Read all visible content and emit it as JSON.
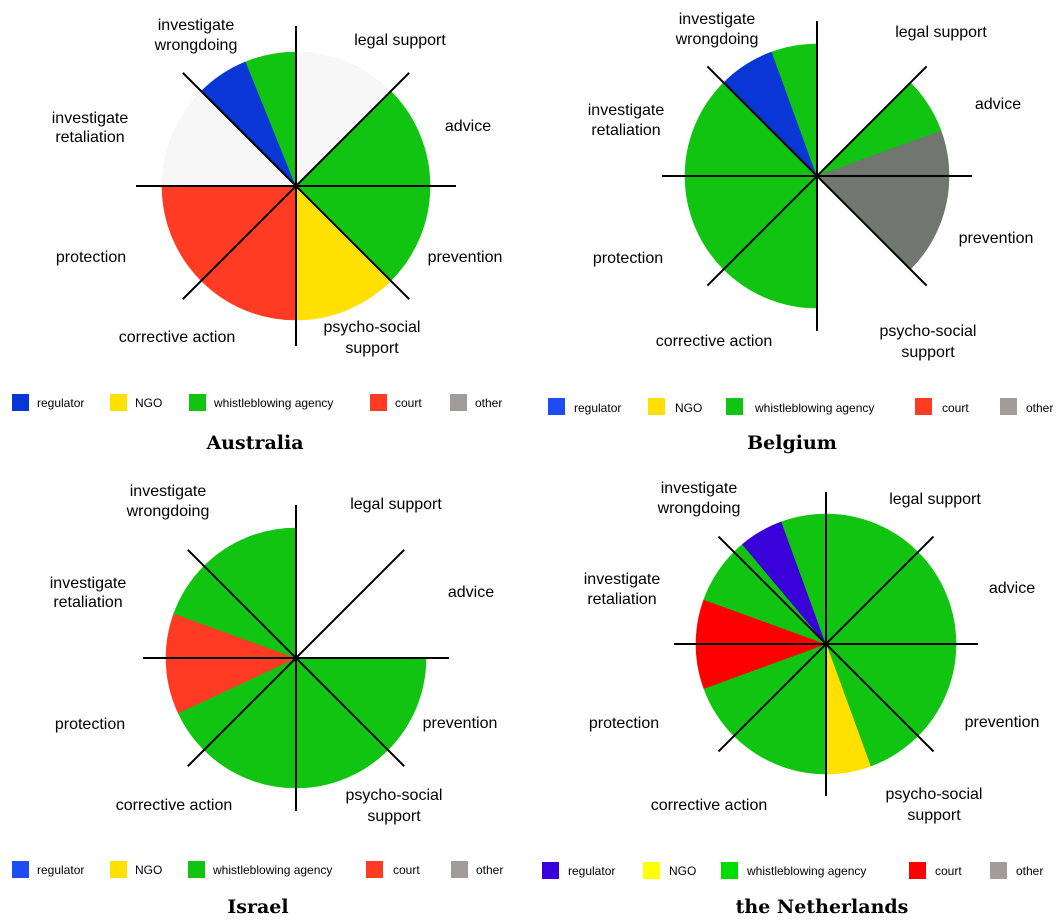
{
  "colors": {
    "regulator": "#0a36d6",
    "regulator_nl": "#3a00d9",
    "ngo": "#ffe000",
    "whistleblowing_agency": "#12c412",
    "court": "#ff3b24",
    "court_nl": "#ff0000",
    "other": "#6f776f",
    "none": "#ffffff",
    "none_light": "#f7f7f7",
    "line": "#000000"
  },
  "legend": {
    "regulator": "regulator",
    "ngo": "NGO",
    "whistleblowing_agency": "whistleblowing agency",
    "court": "court",
    "other": "other"
  },
  "chart_data": [
    {
      "type": "pie",
      "title": "Australia",
      "sector_labels": [
        "legal support",
        "advice",
        "prevention",
        "psycho-social support",
        "corrective action",
        "protection",
        "investigate retaliation",
        "investigate wrongdoing"
      ],
      "slices": [
        {
          "sector": "legal support",
          "provider": "none_light",
          "from": 0,
          "to": 45
        },
        {
          "sector": "advice",
          "provider": "whistleblowing_agency",
          "from": 45,
          "to": 90
        },
        {
          "sector": "prevention",
          "provider": "whistleblowing_agency",
          "from": 90,
          "to": 135
        },
        {
          "sector": "psycho-social support",
          "provider": "ngo",
          "from": 135,
          "to": 180
        },
        {
          "sector": "corrective action",
          "provider": "court",
          "from": 180,
          "to": 225
        },
        {
          "sector": "protection",
          "provider": "court",
          "from": 225,
          "to": 270
        },
        {
          "sector": "investigate retaliation",
          "provider": "none_light",
          "from": 270,
          "to": 315
        },
        {
          "sector": "investigate wrongdoing",
          "provider": "regulator",
          "from": 315,
          "to": 338
        },
        {
          "sector": "investigate wrongdoing",
          "provider": "whistleblowing_agency",
          "from": 338,
          "to": 360
        }
      ]
    },
    {
      "type": "pie",
      "title": "Belgium",
      "sector_labels": [
        "legal support",
        "advice",
        "prevention",
        "psycho-social support",
        "corrective action",
        "protection",
        "investigate retaliation",
        "investigate wrongdoing"
      ],
      "slices": [
        {
          "sector": "legal support",
          "provider": "none",
          "from": 0,
          "to": 45
        },
        {
          "sector": "advice",
          "provider": "whistleblowing_agency",
          "from": 45,
          "to": 70
        },
        {
          "sector": "advice",
          "provider": "other",
          "from": 70,
          "to": 90
        },
        {
          "sector": "prevention",
          "provider": "other",
          "from": 90,
          "to": 135
        },
        {
          "sector": "psycho-social support",
          "provider": "none",
          "from": 135,
          "to": 180
        },
        {
          "sector": "corrective action",
          "provider": "whistleblowing_agency",
          "from": 180,
          "to": 225
        },
        {
          "sector": "protection",
          "provider": "whistleblowing_agency",
          "from": 225,
          "to": 270
        },
        {
          "sector": "investigate retaliation",
          "provider": "whistleblowing_agency",
          "from": 270,
          "to": 315
        },
        {
          "sector": "investigate wrongdoing",
          "provider": "regulator",
          "from": 315,
          "to": 340
        },
        {
          "sector": "investigate wrongdoing",
          "provider": "whistleblowing_agency",
          "from": 340,
          "to": 360
        }
      ]
    },
    {
      "type": "pie",
      "title": "Israel",
      "sector_labels": [
        "legal support",
        "advice",
        "prevention",
        "psycho-social support",
        "corrective action",
        "protection",
        "investigate retaliation",
        "investigate wrongdoing"
      ],
      "slices": [
        {
          "sector": "legal support",
          "provider": "none",
          "from": 0,
          "to": 45
        },
        {
          "sector": "advice",
          "provider": "none",
          "from": 45,
          "to": 90
        },
        {
          "sector": "prevention",
          "provider": "whistleblowing_agency",
          "from": 90,
          "to": 135
        },
        {
          "sector": "psycho-social support",
          "provider": "whistleblowing_agency",
          "from": 135,
          "to": 180
        },
        {
          "sector": "corrective action",
          "provider": "whistleblowing_agency",
          "from": 180,
          "to": 225
        },
        {
          "sector": "protection",
          "provider": "whistleblowing_agency",
          "from": 225,
          "to": 245
        },
        {
          "sector": "protection",
          "provider": "court",
          "from": 245,
          "to": 270
        },
        {
          "sector": "investigate retaliation",
          "provider": "court",
          "from": 270,
          "to": 290
        },
        {
          "sector": "investigate retaliation",
          "provider": "whistleblowing_agency",
          "from": 290,
          "to": 315
        },
        {
          "sector": "investigate wrongdoing",
          "provider": "whistleblowing_agency",
          "from": 315,
          "to": 360
        }
      ]
    },
    {
      "type": "pie",
      "title": "the Netherlands",
      "sector_labels": [
        "legal support",
        "advice",
        "prevention",
        "psycho-social support",
        "corrective action",
        "protection",
        "investigate retaliation",
        "investigate wrongdoing"
      ],
      "slices": [
        {
          "sector": "legal support",
          "provider": "whistleblowing_agency",
          "from": 0,
          "to": 45
        },
        {
          "sector": "advice",
          "provider": "whistleblowing_agency",
          "from": 45,
          "to": 90
        },
        {
          "sector": "prevention",
          "provider": "whistleblowing_agency",
          "from": 90,
          "to": 135
        },
        {
          "sector": "psycho-social support",
          "provider": "whistleblowing_agency",
          "from": 135,
          "to": 160
        },
        {
          "sector": "psycho-social support",
          "provider": "ngo",
          "from": 160,
          "to": 180
        },
        {
          "sector": "corrective action",
          "provider": "whistleblowing_agency",
          "from": 180,
          "to": 225
        },
        {
          "sector": "protection",
          "provider": "whistleblowing_agency",
          "from": 225,
          "to": 250
        },
        {
          "sector": "protection",
          "provider": "court_nl",
          "from": 250,
          "to": 270
        },
        {
          "sector": "investigate retaliation",
          "provider": "court_nl",
          "from": 270,
          "to": 290
        },
        {
          "sector": "investigate retaliation",
          "provider": "whistleblowing_agency",
          "from": 290,
          "to": 315
        },
        {
          "sector": "investigate wrongdoing",
          "provider": "whistleblowing_agency",
          "from": 315,
          "to": 320
        },
        {
          "sector": "investigate wrongdoing",
          "provider": "regulator_nl",
          "from": 320,
          "to": 340
        },
        {
          "sector": "investigate wrongdoing",
          "provider": "whistleblowing_agency",
          "from": 340,
          "to": 360
        }
      ]
    }
  ]
}
